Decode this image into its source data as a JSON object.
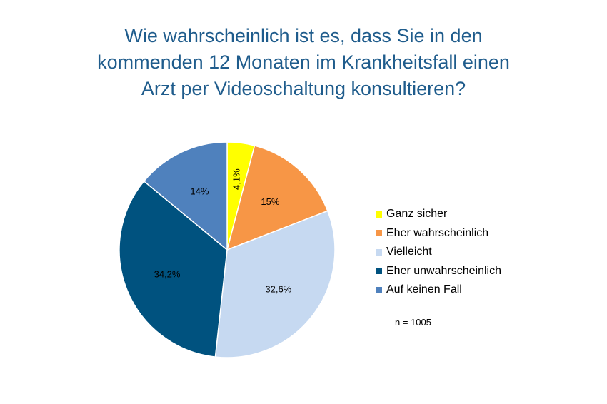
{
  "chart_data": {
    "type": "pie",
    "title_lines": [
      "Wie wahrscheinlich ist es, dass Sie in den",
      "kommenden 12 Monaten im Krankheitsfall einen",
      "Arzt per Videoschaltung konsultieren?"
    ],
    "slices": [
      {
        "name": "Ganz sicher",
        "value": 4.1,
        "label": "4,1%",
        "color": "#ffff00"
      },
      {
        "name": "Eher wahrscheinlich",
        "value": 15,
        "label": "15%",
        "color": "#f79646"
      },
      {
        "name": "Vielleicht",
        "value": 32.6,
        "label": "32,6%",
        "color": "#c6d9f1"
      },
      {
        "name": "Eher unwahrscheinlich",
        "value": 34.2,
        "label": "34,2%",
        "color": "#00527f"
      },
      {
        "name": "Auf keinen Fall",
        "value": 14,
        "label": "14%",
        "color": "#4f81bd"
      }
    ],
    "legend_position": "right",
    "note": "n = 1005"
  }
}
